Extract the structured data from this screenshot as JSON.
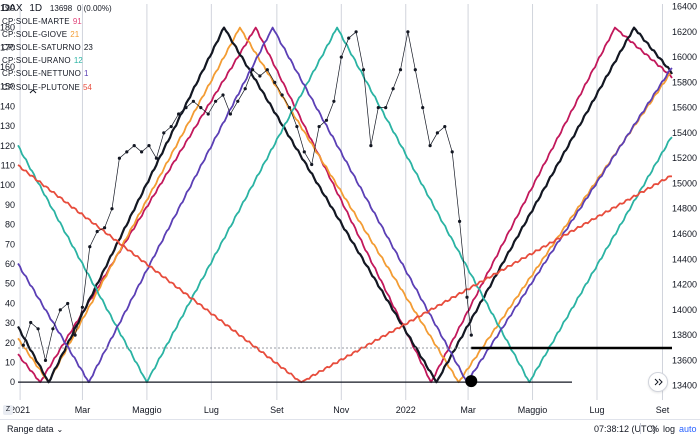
{
  "legend": {
    "symbol": "DAX",
    "interval": "1D",
    "last_value": "13698",
    "change": "0 (0.00%)",
    "items": [
      {
        "label": "CP:SOLE-MARTE",
        "value": "91",
        "color": "#e0457b"
      },
      {
        "label": "CP:SOLE-GIOVE",
        "value": "21",
        "color": "#f39c33"
      },
      {
        "label": "CP:SOLE-SATURNO",
        "value": "23",
        "color": "#131722"
      },
      {
        "label": "CP:SOLE-URANO",
        "value": "12",
        "color": "#2ab3a3"
      },
      {
        "label": "CP:SOLE-NETTUNO",
        "value": "1",
        "color": "#5b3fb5"
      },
      {
        "label": "CP:SOLE-PLUTONE",
        "value": "54",
        "color": "#e74c3c"
      }
    ],
    "collapse_icon": "chevron-up-icon"
  },
  "bottom_bar": {
    "range_label": "Range data",
    "clock": "07:38:12 (UTC)",
    "percent_label": "%",
    "log_label": "log",
    "auto_label": "auto",
    "z_label": "Z",
    "scroll_icon": "double-chevron-right-icon"
  },
  "colors": {
    "marte": "#c2185b",
    "giove": "#f39c33",
    "saturno": "#131722",
    "urano": "#2ab3a3",
    "nettuno": "#5b3fb5",
    "plutone": "#e74c3c",
    "price": "#131722",
    "grid": "#d1d4dc"
  },
  "chart_data": {
    "type": "line",
    "title": "DAX 1D",
    "left_axis": {
      "ticks": [
        0,
        10,
        20,
        30,
        40,
        50,
        60,
        70,
        80,
        90,
        100,
        110,
        120,
        130,
        140,
        150,
        160,
        170,
        180,
        190
      ],
      "ylim": [
        -5,
        192
      ]
    },
    "right_axis": {
      "ticks": [
        13400,
        13600,
        13800,
        14000,
        14200,
        14400,
        14600,
        14800,
        15000,
        15200,
        15400,
        15600,
        15800,
        16000,
        16200,
        16400
      ],
      "ylim": [
        13350,
        16420
      ]
    },
    "x_axis": {
      "ticks": [
        {
          "label": "2021",
          "date": "2021-01-01"
        },
        {
          "label": "Mar",
          "date": "2021-03-01"
        },
        {
          "label": "Maggio",
          "date": "2021-05-01"
        },
        {
          "label": "Lug",
          "date": "2021-07-01"
        },
        {
          "label": "Set",
          "date": "2021-09-01"
        },
        {
          "label": "Nov",
          "date": "2021-11-01"
        },
        {
          "label": "2022",
          "date": "2022-01-01"
        },
        {
          "label": "Mar",
          "date": "2022-03-01"
        },
        {
          "label": "Maggio",
          "date": "2022-05-01"
        },
        {
          "label": "Lug",
          "date": "2022-07-01"
        },
        {
          "label": "Set",
          "date": "2022-09-01"
        }
      ],
      "xlim": [
        "2020-12-30",
        "2022-09-10"
      ]
    },
    "series": [
      {
        "name": "CP:SOLE-MARTE",
        "axis": "left",
        "color": "#c2185b",
        "points": [
          [
            "2020-12-30",
            14
          ],
          [
            "2021-01-20",
            0
          ],
          [
            "2021-08-12",
            180
          ],
          [
            "2022-01-25",
            0
          ],
          [
            "2022-07-18",
            180
          ],
          [
            "2022-09-10",
            155
          ]
        ]
      },
      {
        "name": "CP:SOLE-GIOVE",
        "axis": "left",
        "color": "#f39c33",
        "points": [
          [
            "2020-12-30",
            22
          ],
          [
            "2021-01-28",
            0
          ],
          [
            "2021-07-28",
            180
          ],
          [
            "2022-02-20",
            0
          ],
          [
            "2022-09-10",
            158
          ]
        ]
      },
      {
        "name": "CP:SOLE-SATURNO",
        "axis": "left",
        "color": "#131722",
        "points": [
          [
            "2020-12-30",
            28
          ],
          [
            "2021-01-28",
            0
          ],
          [
            "2021-07-13",
            180
          ],
          [
            "2022-01-30",
            0
          ],
          [
            "2022-08-05",
            180
          ],
          [
            "2022-09-10",
            157
          ]
        ]
      },
      {
        "name": "CP:SOLE-URANO",
        "axis": "left",
        "color": "#2ab3a3",
        "points": [
          [
            "2020-12-30",
            120
          ],
          [
            "2021-05-01",
            0
          ],
          [
            "2021-10-28",
            180
          ],
          [
            "2022-04-28",
            0
          ],
          [
            "2022-09-10",
            125
          ]
        ]
      },
      {
        "name": "CP:SOLE-NETTUNO",
        "axis": "left",
        "color": "#5b3fb5",
        "points": [
          [
            "2020-12-30",
            60
          ],
          [
            "2021-03-07",
            0
          ],
          [
            "2021-08-28",
            180
          ],
          [
            "2022-02-28",
            0
          ],
          [
            "2022-09-10",
            160
          ]
        ]
      },
      {
        "name": "CP:SOLE-PLUTONE",
        "axis": "left",
        "color": "#e74c3c",
        "points": [
          [
            "2020-12-30",
            110
          ],
          [
            "2021-09-24",
            0
          ],
          [
            "2022-09-10",
            105
          ]
        ]
      },
      {
        "name": "DAX",
        "axis": "right",
        "color": "#131722",
        "points": [
          [
            "2021-01-04",
            13720
          ],
          [
            "2021-01-11",
            13900
          ],
          [
            "2021-01-18",
            13850
          ],
          [
            "2021-01-25",
            13600
          ],
          [
            "2021-02-01",
            13850
          ],
          [
            "2021-02-08",
            14000
          ],
          [
            "2021-02-15",
            14050
          ],
          [
            "2021-02-22",
            13800
          ],
          [
            "2021-03-01",
            14020
          ],
          [
            "2021-03-08",
            14500
          ],
          [
            "2021-03-15",
            14620
          ],
          [
            "2021-03-22",
            14650
          ],
          [
            "2021-03-29",
            14800
          ],
          [
            "2021-04-05",
            15200
          ],
          [
            "2021-04-12",
            15250
          ],
          [
            "2021-04-19",
            15300
          ],
          [
            "2021-04-26",
            15250
          ],
          [
            "2021-05-03",
            15300
          ],
          [
            "2021-05-10",
            15200
          ],
          [
            "2021-05-17",
            15400
          ],
          [
            "2021-05-24",
            15450
          ],
          [
            "2021-05-31",
            15550
          ],
          [
            "2021-06-07",
            15600
          ],
          [
            "2021-06-14",
            15650
          ],
          [
            "2021-06-21",
            15600
          ],
          [
            "2021-06-28",
            15550
          ],
          [
            "2021-07-05",
            15650
          ],
          [
            "2021-07-12",
            15700
          ],
          [
            "2021-07-19",
            15550
          ],
          [
            "2021-07-26",
            15650
          ],
          [
            "2021-08-02",
            15750
          ],
          [
            "2021-08-09",
            15900
          ],
          [
            "2021-08-16",
            15850
          ],
          [
            "2021-08-23",
            15900
          ],
          [
            "2021-08-30",
            15800
          ],
          [
            "2021-09-06",
            15700
          ],
          [
            "2021-09-13",
            15600
          ],
          [
            "2021-09-20",
            15450
          ],
          [
            "2021-09-27",
            15250
          ],
          [
            "2021-10-04",
            15150
          ],
          [
            "2021-10-11",
            15450
          ],
          [
            "2021-10-18",
            15500
          ],
          [
            "2021-10-25",
            15650
          ],
          [
            "2021-11-01",
            16000
          ],
          [
            "2021-11-08",
            16150
          ],
          [
            "2021-11-15",
            16200
          ],
          [
            "2021-11-22",
            15900
          ],
          [
            "2021-11-29",
            15300
          ],
          [
            "2021-12-06",
            15600
          ],
          [
            "2021-12-13",
            15600
          ],
          [
            "2021-12-20",
            15750
          ],
          [
            "2021-12-27",
            15900
          ],
          [
            "2022-01-03",
            16200
          ],
          [
            "2022-01-10",
            15900
          ],
          [
            "2022-01-17",
            15600
          ],
          [
            "2022-01-24",
            15300
          ],
          [
            "2022-01-31",
            15400
          ],
          [
            "2022-02-07",
            15450
          ],
          [
            "2022-02-14",
            15250
          ],
          [
            "2022-02-21",
            14700
          ],
          [
            "2022-02-28",
            14100
          ],
          [
            "2022-03-04",
            13800
          ]
        ]
      }
    ],
    "annotations": [
      {
        "type": "hline",
        "axis": "right",
        "value": 13698,
        "style": "dashed",
        "color": "#9598a1"
      },
      {
        "type": "segment",
        "axis": "right",
        "value": 13698,
        "from": "2022-03-04",
        "to": "2022-09-10",
        "color": "#000000"
      },
      {
        "type": "hline",
        "axis": "left",
        "value": 0,
        "color": "#131722"
      },
      {
        "type": "marker",
        "axis": "left",
        "date": "2022-03-04",
        "value": 0,
        "shape": "circle",
        "color": "#000000"
      }
    ],
    "grid": true
  }
}
